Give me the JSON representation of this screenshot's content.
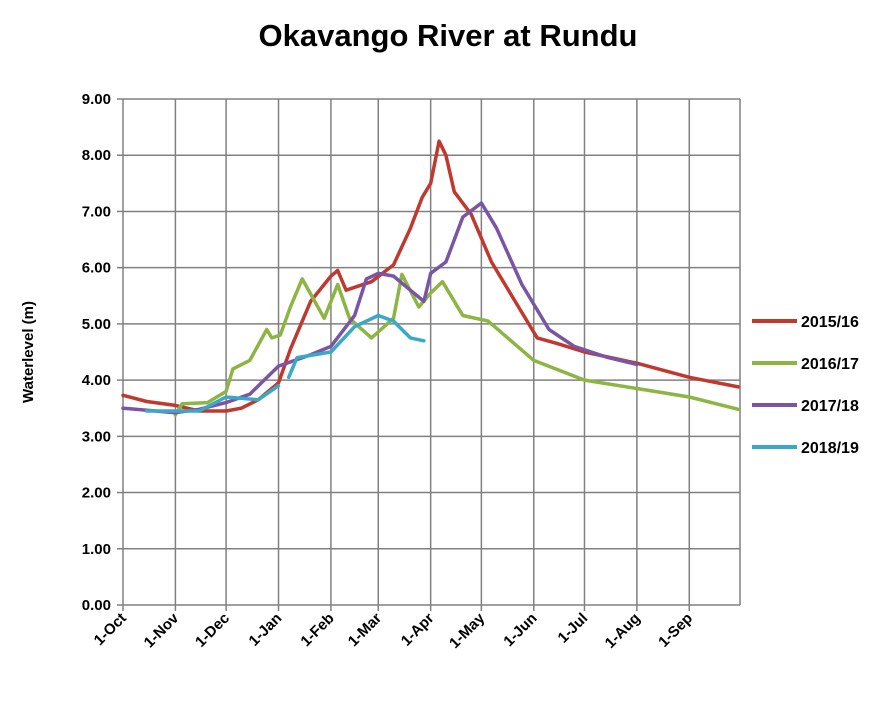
{
  "chart_data": {
    "type": "line",
    "title": "Okavango River at Rundu",
    "xlabel": "",
    "ylabel": "Waterlevel (m)",
    "ylim": [
      0,
      9
    ],
    "yticks": [
      "0.00",
      "1.00",
      "2.00",
      "3.00",
      "4.00",
      "5.00",
      "6.00",
      "7.00",
      "8.00",
      "9.00"
    ],
    "xticks": [
      "1-Oct",
      "1-Nov",
      "1-Dec",
      "1-Jan",
      "1-Feb",
      "1-Mar",
      "1-Apr",
      "1-May",
      "1-Jun",
      "1-Jul",
      "1-Aug",
      "1-Sep"
    ],
    "grid": true,
    "legend": "right",
    "series": [
      {
        "name": "2015/16",
        "color": "#c0392f",
        "points": [
          [
            "1-Oct",
            3.73
          ],
          [
            "15-Oct",
            3.62
          ],
          [
            "1-Nov",
            3.55
          ],
          [
            "15-Nov",
            3.45
          ],
          [
            "1-Dec",
            3.45
          ],
          [
            "10-Dec",
            3.5
          ],
          [
            "20-Dec",
            3.65
          ],
          [
            "1-Jan",
            3.95
          ],
          [
            "8-Jan",
            4.55
          ],
          [
            "20-Jan",
            5.4
          ],
          [
            "1-Feb",
            5.85
          ],
          [
            "5-Feb",
            5.95
          ],
          [
            "10-Feb",
            5.6
          ],
          [
            "25-Feb",
            5.75
          ],
          [
            "10-Mar",
            6.05
          ],
          [
            "20-Mar",
            6.7
          ],
          [
            "27-Mar",
            7.25
          ],
          [
            "1-Apr",
            7.5
          ],
          [
            "6-Apr",
            8.25
          ],
          [
            "10-Apr",
            8.0
          ],
          [
            "15-Apr",
            7.35
          ],
          [
            "25-Apr",
            6.95
          ],
          [
            "7-May",
            6.1
          ],
          [
            "20-May",
            5.45
          ],
          [
            "3-Jun",
            4.75
          ],
          [
            "15-Jun",
            4.65
          ],
          [
            "1-Jul",
            4.5
          ],
          [
            "1-Aug",
            4.3
          ],
          [
            "1-Sep",
            4.05
          ],
          [
            "30-Sep",
            3.88
          ]
        ]
      },
      {
        "name": "2016/17",
        "color": "#8db543",
        "points": [
          [
            "1-Nov",
            3.38
          ],
          [
            "5-Nov",
            3.58
          ],
          [
            "20-Nov",
            3.6
          ],
          [
            "1-Dec",
            3.8
          ],
          [
            "5-Dec",
            4.2
          ],
          [
            "15-Dec",
            4.35
          ],
          [
            "25-Dec",
            4.9
          ],
          [
            "28-Dec",
            4.75
          ],
          [
            "2-Jan",
            4.8
          ],
          [
            "8-Jan",
            5.3
          ],
          [
            "15-Jan",
            5.8
          ],
          [
            "28-Jan",
            5.1
          ],
          [
            "5-Feb",
            5.7
          ],
          [
            "12-Feb",
            5.1
          ],
          [
            "25-Feb",
            4.75
          ],
          [
            "10-Mar",
            5.1
          ],
          [
            "15-Mar",
            5.88
          ],
          [
            "25-Mar",
            5.3
          ],
          [
            "1-Apr",
            5.55
          ],
          [
            "8-Apr",
            5.75
          ],
          [
            "20-Apr",
            5.15
          ],
          [
            "5-May",
            5.05
          ],
          [
            "1-Jun",
            4.35
          ],
          [
            "1-Jul",
            4.0
          ],
          [
            "1-Aug",
            3.85
          ],
          [
            "1-Sep",
            3.7
          ],
          [
            "30-Sep",
            3.48
          ]
        ]
      },
      {
        "name": "2017/18",
        "color": "#7a55a3",
        "points": [
          [
            "1-Oct",
            3.5
          ],
          [
            "1-Nov",
            3.42
          ],
          [
            "15-Nov",
            3.48
          ],
          [
            "1-Dec",
            3.6
          ],
          [
            "15-Dec",
            3.75
          ],
          [
            "1-Jan",
            4.25
          ],
          [
            "20-Jan",
            4.45
          ],
          [
            "1-Feb",
            4.6
          ],
          [
            "15-Feb",
            5.15
          ],
          [
            "22-Feb",
            5.8
          ],
          [
            "1-Mar",
            5.9
          ],
          [
            "10-Mar",
            5.85
          ],
          [
            "20-Mar",
            5.6
          ],
          [
            "28-Mar",
            5.4
          ],
          [
            "1-Apr",
            5.9
          ],
          [
            "10-Apr",
            6.1
          ],
          [
            "20-Apr",
            6.9
          ],
          [
            "1-May",
            7.15
          ],
          [
            "10-May",
            6.7
          ],
          [
            "25-May",
            5.7
          ],
          [
            "10-Jun",
            4.9
          ],
          [
            "25-Jun",
            4.6
          ],
          [
            "15-Jul",
            4.4
          ],
          [
            "1-Aug",
            4.28
          ]
        ]
      },
      {
        "name": "2018/19",
        "color": "#3aa9c8",
        "points": [
          [
            "15-Oct",
            3.45
          ],
          [
            "15-Nov",
            3.45
          ],
          [
            "1-Dec",
            3.7
          ],
          [
            "20-Dec",
            3.65
          ],
          [
            "1-Jan",
            3.9
          ]
        ],
        "points2": [
          [
            "7-Jan",
            4.05
          ],
          [
            "12-Jan",
            4.4
          ],
          [
            "1-Feb",
            4.5
          ],
          [
            "15-Feb",
            4.95
          ],
          [
            "1-Mar",
            5.15
          ],
          [
            "10-Mar",
            5.05
          ],
          [
            "20-Mar",
            4.75
          ],
          [
            "28-Mar",
            4.7
          ]
        ]
      }
    ]
  }
}
